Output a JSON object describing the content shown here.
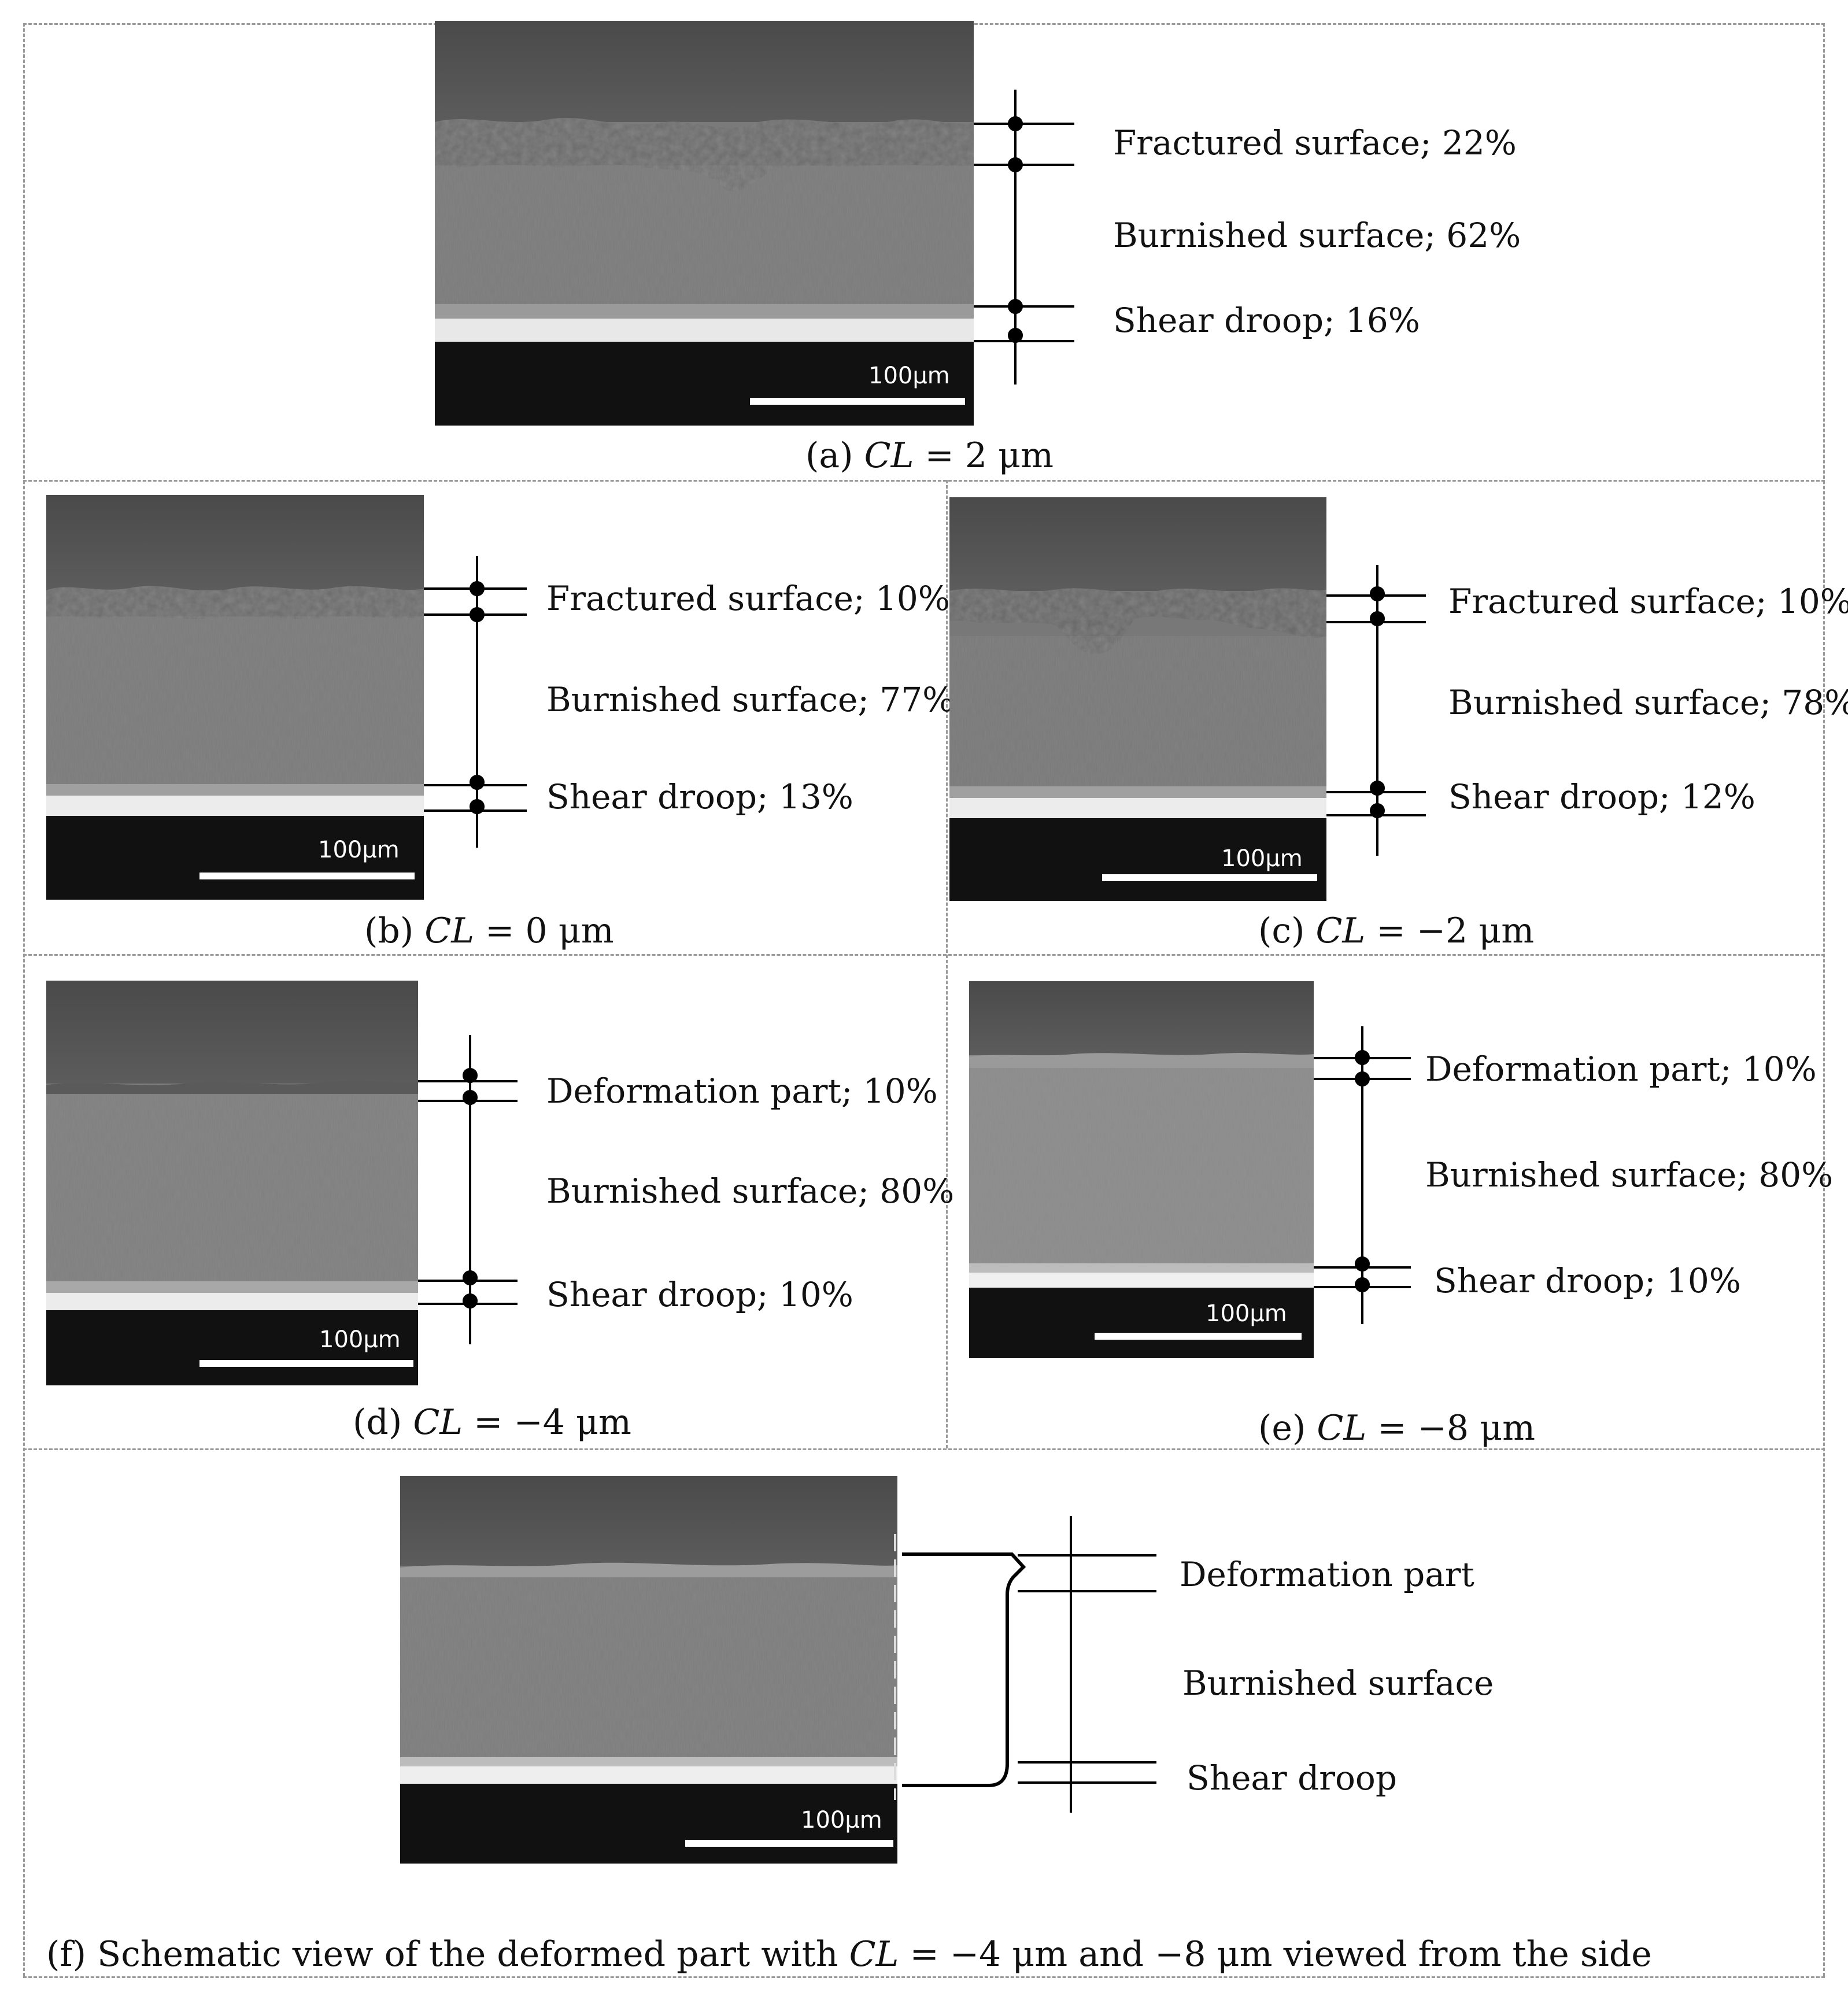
{
  "scale_bar_label": "100μm",
  "panels": {
    "a": {
      "caption_prefix": "(a)",
      "caption_var": "CL",
      "caption_value": "= 2 μm",
      "labels": [
        "Fractured surface; 22%",
        "Burnished surface; 62%",
        "Shear droop; 16%"
      ]
    },
    "b": {
      "caption_prefix": "(b)",
      "caption_var": "CL",
      "caption_value": "= 0 μm",
      "labels": [
        "Fractured surface; 10%",
        "Burnished surface; 77%",
        "Shear droop; 13%"
      ]
    },
    "c": {
      "caption_prefix": "(c)",
      "caption_var": "CL",
      "caption_value": "= −2 μm",
      "labels": [
        "Fractured surface; 10%",
        "Burnished surface; 78%",
        "Shear droop; 12%"
      ]
    },
    "d": {
      "caption_prefix": "(d)",
      "caption_var": "CL",
      "caption_value": "= −4 μm",
      "labels": [
        "Deformation part; 10%",
        "Burnished surface; 80%",
        "Shear droop; 10%"
      ]
    },
    "e": {
      "caption_prefix": "(e)",
      "caption_var": "CL",
      "caption_value": "= −8 μm",
      "labels": [
        "Deformation part; 10%",
        "Burnished surface; 80%",
        "Shear droop; 10%"
      ]
    },
    "f": {
      "caption_prefix": "(f) Schematic view of the deformed part with",
      "caption_var": "CL",
      "caption_value": "= −4 μm and −8 μm viewed from the side",
      "labels": [
        "Deformation part",
        "Burnished surface",
        "Shear droop"
      ]
    }
  }
}
